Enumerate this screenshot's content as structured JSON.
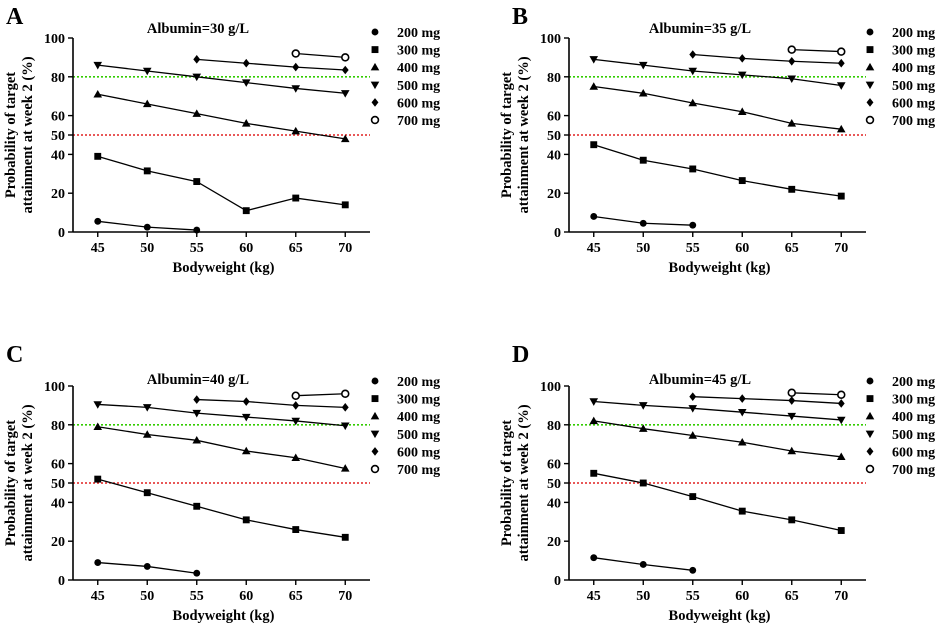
{
  "figure": {
    "shared": {
      "xlabel": "Bodyweight (kg)",
      "ylabel_line1": "Probability of target",
      "ylabel_line2": "attainment at week 2 (%)",
      "x_ticks": [
        45,
        50,
        55,
        60,
        65,
        70
      ],
      "y_ticks": [
        0,
        20,
        40,
        50,
        60,
        80,
        100
      ],
      "xlim": [
        42.5,
        72.5
      ],
      "ylim": [
        0,
        100
      ],
      "reference_lines": [
        {
          "y": 80,
          "color": "#33cc00"
        },
        {
          "y": 50,
          "color": "#e02020"
        }
      ],
      "legend": [
        {
          "label": "200 mg",
          "marker": "circle-filled"
        },
        {
          "label": "300 mg",
          "marker": "square"
        },
        {
          "label": "400 mg",
          "marker": "triangle-up"
        },
        {
          "label": "500 mg",
          "marker": "triangle-down"
        },
        {
          "label": "600 mg",
          "marker": "diamond"
        },
        {
          "label": "700 mg",
          "marker": "circle-open"
        }
      ]
    }
  },
  "chart_data": [
    {
      "type": "line",
      "panel_letter": "A",
      "title": "Albumin=30 g/L",
      "xlabel": "Bodyweight (kg)",
      "ylabel": "Probability of target attainment at week 2 (%)",
      "ylim": [
        0,
        100
      ],
      "series": [
        {
          "name": "200 mg",
          "x": [
            45,
            50,
            55
          ],
          "values": [
            5.5,
            2.5,
            1
          ]
        },
        {
          "name": "300 mg",
          "x": [
            45,
            50,
            55,
            60,
            65,
            70
          ],
          "values": [
            39,
            31.5,
            26,
            11,
            17.5,
            14
          ]
        },
        {
          "name": "400 mg",
          "x": [
            45,
            50,
            55,
            60,
            65,
            70
          ],
          "values": [
            71,
            66,
            61,
            56,
            52,
            48
          ]
        },
        {
          "name": "500 mg",
          "x": [
            45,
            50,
            55,
            60,
            65,
            70
          ],
          "values": [
            86,
            83,
            80,
            77,
            74,
            71.5
          ]
        },
        {
          "name": "600 mg",
          "x": [
            55,
            60,
            65,
            70
          ],
          "values": [
            89,
            87,
            85,
            83.5
          ]
        },
        {
          "name": "700 mg",
          "x": [
            65,
            70
          ],
          "values": [
            92,
            90
          ]
        }
      ]
    },
    {
      "type": "line",
      "panel_letter": "B",
      "title": "Albumin=35 g/L",
      "xlabel": "Bodyweight (kg)",
      "ylabel": "Probability of target attainment at week 2 (%)",
      "ylim": [
        0,
        100
      ],
      "series": [
        {
          "name": "200 mg",
          "x": [
            45,
            50,
            55
          ],
          "values": [
            8,
            4.5,
            3.5
          ]
        },
        {
          "name": "300 mg",
          "x": [
            45,
            50,
            55,
            60,
            65,
            70
          ],
          "values": [
            45,
            37,
            32.5,
            26.5,
            22,
            18.5
          ]
        },
        {
          "name": "400 mg",
          "x": [
            45,
            50,
            55,
            60,
            65,
            70
          ],
          "values": [
            75,
            71.5,
            66.5,
            62,
            56,
            53
          ]
        },
        {
          "name": "500 mg",
          "x": [
            45,
            50,
            55,
            60,
            65,
            70
          ],
          "values": [
            89,
            86,
            83,
            81,
            79,
            75.5
          ]
        },
        {
          "name": "600 mg",
          "x": [
            55,
            60,
            65,
            70
          ],
          "values": [
            91.5,
            89.5,
            88,
            87
          ]
        },
        {
          "name": "700 mg",
          "x": [
            65,
            70
          ],
          "values": [
            94,
            93
          ]
        }
      ]
    },
    {
      "type": "line",
      "panel_letter": "C",
      "title": "Albumin=40 g/L",
      "xlabel": "Bodyweight (kg)",
      "ylabel": "Probability of target attainment at week 2 (%)",
      "ylim": [
        0,
        100
      ],
      "series": [
        {
          "name": "200 mg",
          "x": [
            45,
            50,
            55
          ],
          "values": [
            9,
            7,
            3.5
          ]
        },
        {
          "name": "300 mg",
          "x": [
            45,
            50,
            55,
            60,
            65,
            70
          ],
          "values": [
            52,
            45,
            38,
            31,
            26,
            22
          ]
        },
        {
          "name": "400 mg",
          "x": [
            45,
            50,
            55,
            60,
            65,
            70
          ],
          "values": [
            79,
            75,
            72,
            66.5,
            63,
            57.5
          ]
        },
        {
          "name": "500 mg",
          "x": [
            45,
            50,
            55,
            60,
            65,
            70
          ],
          "values": [
            90.5,
            89,
            86,
            84,
            82,
            79.5
          ]
        },
        {
          "name": "600 mg",
          "x": [
            55,
            60,
            65,
            70
          ],
          "values": [
            93,
            92,
            90,
            89
          ]
        },
        {
          "name": "700 mg",
          "x": [
            65,
            70
          ],
          "values": [
            95,
            96
          ]
        }
      ]
    },
    {
      "type": "line",
      "panel_letter": "D",
      "title": "Albumin=45 g/L",
      "xlabel": "Bodyweight (kg)",
      "ylabel": "Probability of target attainment at week 2 (%)",
      "ylim": [
        0,
        100
      ],
      "series": [
        {
          "name": "200 mg",
          "x": [
            45,
            50,
            55
          ],
          "values": [
            11.5,
            8,
            5
          ]
        },
        {
          "name": "300 mg",
          "x": [
            45,
            50,
            55,
            60,
            65,
            70
          ],
          "values": [
            55,
            50,
            43,
            35.5,
            31,
            25.5
          ]
        },
        {
          "name": "400 mg",
          "x": [
            45,
            50,
            55,
            60,
            65,
            70
          ],
          "values": [
            82,
            78,
            74.5,
            71,
            66.5,
            63.5
          ]
        },
        {
          "name": "500 mg",
          "x": [
            45,
            50,
            55,
            60,
            65,
            70
          ],
          "values": [
            92,
            90,
            88.5,
            86.5,
            84.5,
            82.5
          ]
        },
        {
          "name": "600 mg",
          "x": [
            55,
            60,
            65,
            70
          ],
          "values": [
            94.5,
            93.5,
            92.5,
            91
          ]
        },
        {
          "name": "700 mg",
          "x": [
            65,
            70
          ],
          "values": [
            96.5,
            95.5
          ]
        }
      ]
    }
  ]
}
